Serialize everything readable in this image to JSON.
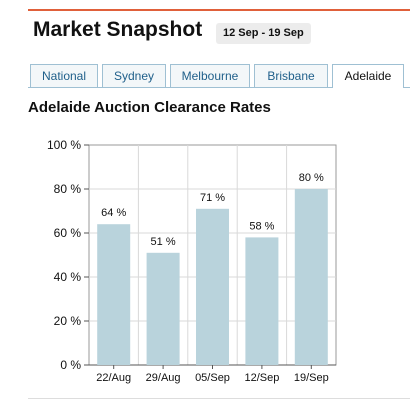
{
  "header": {
    "title": "Market Snapshot",
    "date_range": "12 Sep - 19 Sep"
  },
  "tabs": [
    {
      "label": "National",
      "active": false
    },
    {
      "label": "Sydney",
      "active": false
    },
    {
      "label": "Melbourne",
      "active": false
    },
    {
      "label": "Brisbane",
      "active": false
    },
    {
      "label": "Adelaide",
      "active": true
    }
  ],
  "chart_heading": "Adelaide Auction Clearance Rates",
  "colors": {
    "accent_rule": "#e0603a",
    "tab_text": "#1f5f8a",
    "bar_fill": "#b9d3dc"
  },
  "chart_data": {
    "type": "bar",
    "categories": [
      "22/Aug",
      "29/Aug",
      "05/Sep",
      "12/Sep",
      "19/Sep"
    ],
    "values": [
      64,
      51,
      71,
      58,
      80
    ],
    "data_labels": [
      "64 %",
      "51 %",
      "71 %",
      "58 %",
      "80 %"
    ],
    "ylim": [
      0,
      100
    ],
    "yticks": [
      0,
      20,
      40,
      60,
      80,
      100
    ],
    "ytick_labels": [
      "0 %",
      "20 %",
      "40 %",
      "60 %",
      "80 %",
      "100 %"
    ],
    "grid": true
  }
}
